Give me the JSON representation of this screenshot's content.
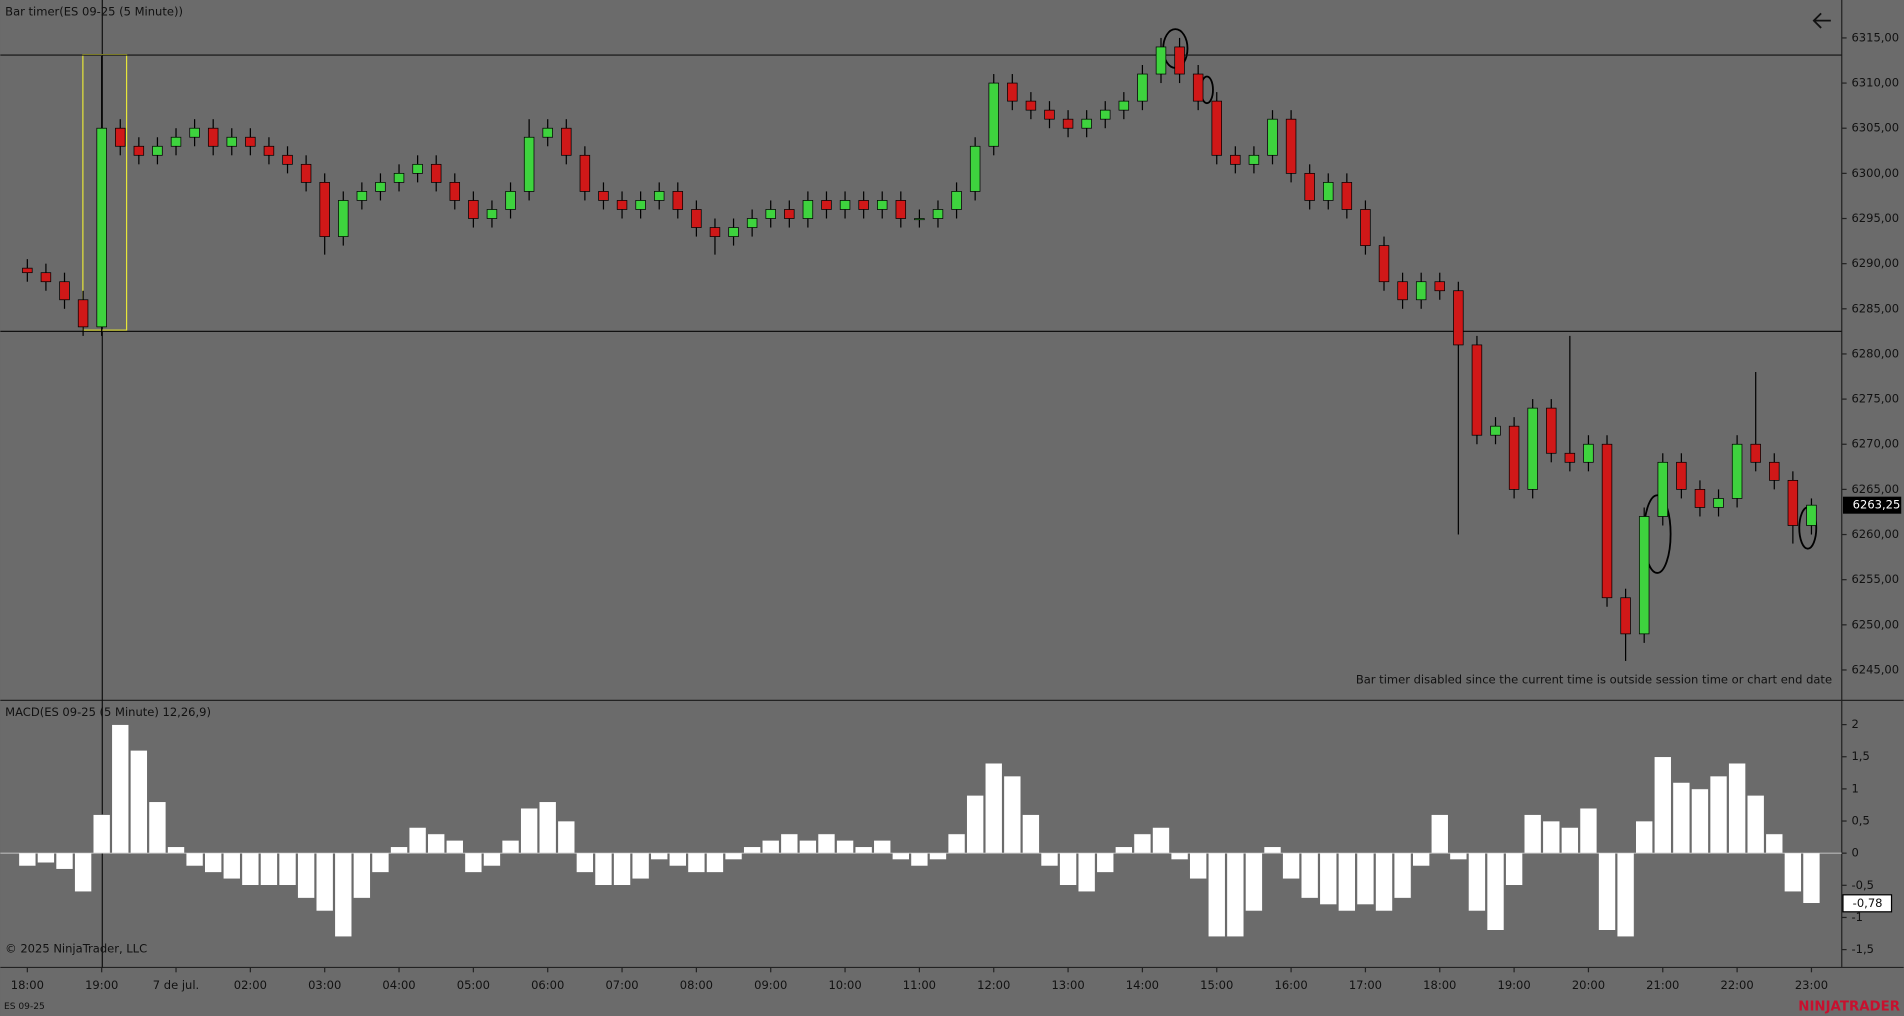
{
  "chart_data": [
    {
      "type": "candlestick",
      "title": "Bar timer(ES 09-25 (5 Minute))",
      "note": "Bar timer disabled since the current time is outside session time or chart end date",
      "up_color": "#3ed33e",
      "down_color": "#d01818",
      "xlim": [
        -0.8,
        97.5
      ],
      "xticks": [
        {
          "value": 0,
          "label": "18:00"
        },
        {
          "value": 4,
          "label": "19:00"
        },
        {
          "value": 8,
          "label": "7 de jul."
        },
        {
          "value": 12,
          "label": "02:00"
        },
        {
          "value": 16,
          "label": "03:00"
        },
        {
          "value": 20,
          "label": "04:00"
        },
        {
          "value": 24,
          "label": "05:00"
        },
        {
          "value": 28,
          "label": "06:00"
        },
        {
          "value": 32,
          "label": "07:00"
        },
        {
          "value": 36,
          "label": "08:00"
        },
        {
          "value": 40,
          "label": "09:00"
        },
        {
          "value": 44,
          "label": "10:00"
        },
        {
          "value": 48,
          "label": "11:00"
        },
        {
          "value": 52,
          "label": "12:00"
        },
        {
          "value": 56,
          "label": "13:00"
        },
        {
          "value": 60,
          "label": "14:00"
        },
        {
          "value": 64,
          "label": "15:00"
        },
        {
          "value": 68,
          "label": "16:00"
        },
        {
          "value": 72,
          "label": "17:00"
        },
        {
          "value": 76,
          "label": "18:00"
        },
        {
          "value": 80,
          "label": "19:00"
        },
        {
          "value": 84,
          "label": "20:00"
        },
        {
          "value": 88,
          "label": "21:00"
        },
        {
          "value": 92,
          "label": "22:00"
        },
        {
          "value": 96,
          "label": "23:00"
        }
      ],
      "ylim": [
        6241.9,
        6319.2
      ],
      "yticks": [
        {
          "value": 6245,
          "label": "6245,00"
        },
        {
          "value": 6250,
          "label": "6250,00"
        },
        {
          "value": 6255,
          "label": "6255,00"
        },
        {
          "value": 6260,
          "label": "6260,00"
        },
        {
          "value": 6265,
          "label": "6265,00"
        },
        {
          "value": 6270,
          "label": "6270,00"
        },
        {
          "value": 6275,
          "label": "6275,00"
        },
        {
          "value": 6280,
          "label": "6280,00"
        },
        {
          "value": 6285,
          "label": "6285,00"
        },
        {
          "value": 6290,
          "label": "6290,00"
        },
        {
          "value": 6295,
          "label": "6295,00"
        },
        {
          "value": 6300,
          "label": "6300,00"
        },
        {
          "value": 6305,
          "label": "6305,00"
        },
        {
          "value": 6310,
          "label": "6310,00"
        },
        {
          "value": 6315,
          "label": "6315,00"
        }
      ],
      "levels": [
        6313.1,
        6282.5
      ],
      "current_price": {
        "value": 6263.25,
        "label": "6263,25"
      },
      "open": [
        6289.5,
        6289,
        6288,
        6286,
        6283,
        6305,
        6303,
        6302,
        6303,
        6304,
        6305,
        6303,
        6304,
        6303,
        6302,
        6301,
        6299,
        6293,
        6297,
        6298,
        6299,
        6300,
        6301,
        6299,
        6297,
        6295,
        6296,
        6298,
        6304,
        6305,
        6302,
        6298,
        6297,
        6296,
        6297,
        6298,
        6296,
        6294,
        6293,
        6294,
        6295,
        6296,
        6295,
        6297,
        6296,
        6297,
        6296,
        6297,
        6295,
        6295,
        6296,
        6298,
        6303,
        6310,
        6308,
        6307,
        6306,
        6305,
        6306,
        6307,
        6308,
        6311,
        6314,
        6311,
        6308,
        6302,
        6301,
        6302,
        6306,
        6300,
        6297,
        6299,
        6296,
        6292,
        6288,
        6286,
        6288,
        6287,
        6281,
        6271,
        6272,
        6265,
        6274,
        6269,
        6268,
        6270,
        6253,
        6249,
        6262,
        6268,
        6265,
        6263,
        6264,
        6270,
        6268,
        6266,
        6261
      ],
      "high": [
        6290.5,
        6290,
        6289,
        6287,
        6313,
        6306,
        6304,
        6304,
        6305,
        6306,
        6306,
        6305,
        6305,
        6304,
        6303,
        6302,
        6300,
        6298,
        6299,
        6300,
        6301,
        6302,
        6302,
        6300,
        6298,
        6297,
        6299,
        6306,
        6306,
        6306,
        6303,
        6299,
        6298,
        6298,
        6299,
        6299,
        6297,
        6295,
        6295,
        6296,
        6297,
        6297,
        6298,
        6298,
        6298,
        6298,
        6298,
        6298,
        6296,
        6297,
        6299,
        6304,
        6311,
        6311,
        6309,
        6308,
        6307,
        6307,
        6308,
        6309,
        6312,
        6315,
        6315,
        6312,
        6309,
        6303,
        6303,
        6307,
        6307,
        6301,
        6300,
        6300,
        6297,
        6293,
        6289,
        6289,
        6289,
        6288,
        6282,
        6273,
        6273,
        6275,
        6275,
        6282,
        6271,
        6271,
        6254,
        6263,
        6269,
        6269,
        6266,
        6265,
        6271,
        6278,
        6269,
        6267,
        6264
      ],
      "low": [
        6288,
        6287,
        6285,
        6282,
        6282,
        6302,
        6301,
        6301,
        6302,
        6303,
        6302,
        6302,
        6302,
        6301,
        6300,
        6298,
        6291,
        6292,
        6296,
        6297,
        6298,
        6299,
        6298,
        6296,
        6294,
        6294,
        6295,
        6297,
        6303,
        6301,
        6297,
        6296,
        6295,
        6295,
        6296,
        6295,
        6293,
        6291,
        6292,
        6293,
        6294,
        6294,
        6294,
        6295,
        6295,
        6295,
        6295,
        6294,
        6294,
        6294,
        6295,
        6297,
        6302,
        6307,
        6306,
        6305,
        6304,
        6304,
        6305,
        6306,
        6307,
        6310,
        6310,
        6307,
        6301,
        6300,
        6300,
        6301,
        6299,
        6296,
        6296,
        6295,
        6291,
        6287,
        6285,
        6285,
        6286,
        6260,
        6270,
        6270,
        6264,
        6264,
        6268,
        6267,
        6267,
        6252,
        6246,
        6248,
        6261,
        6264,
        6262,
        6262,
        6263,
        6267,
        6265,
        6259,
        6260
      ],
      "close": [
        6289,
        6288,
        6286,
        6283,
        6305,
        6303,
        6302,
        6303,
        6304,
        6305,
        6303,
        6304,
        6303,
        6302,
        6301,
        6299,
        6293,
        6297,
        6298,
        6299,
        6300,
        6301,
        6299,
        6297,
        6295,
        6296,
        6298,
        6304,
        6305,
        6302,
        6298,
        6297,
        6296,
        6297,
        6298,
        6296,
        6294,
        6293,
        6294,
        6295,
        6296,
        6295,
        6297,
        6296,
        6297,
        6296,
        6297,
        6295,
        6295,
        6296,
        6298,
        6303,
        6310,
        6308,
        6307,
        6306,
        6305,
        6306,
        6307,
        6308,
        6311,
        6314,
        6311,
        6308,
        6302,
        6301,
        6302,
        6306,
        6300,
        6297,
        6299,
        6296,
        6292,
        6288,
        6286,
        6288,
        6287,
        6281,
        6271,
        6272,
        6265,
        6274,
        6269,
        6268,
        6270,
        6253,
        6249,
        6262,
        6268,
        6265,
        6263,
        6264,
        6270,
        6268,
        6266,
        6261,
        6263.25
      ]
    },
    {
      "type": "histogram",
      "title": "MACD(ES 09-25 (5 Minute) 12,26,9)",
      "color": "#ffffff",
      "ylim": [
        -1.74,
        2.32
      ],
      "yticks": [
        {
          "value": -1.5,
          "label": "-1,5"
        },
        -1,
        {
          "value": -0.5,
          "label": "-0,5"
        },
        0,
        {
          "value": 0.5,
          "label": "0,5"
        },
        1,
        {
          "value": 1.5,
          "label": "1,5"
        },
        2
      ],
      "current_value": {
        "value": -0.78,
        "label": "-0,78"
      },
      "values": [
        -0.2,
        -0.15,
        -0.25,
        -0.6,
        0.6,
        2.0,
        1.6,
        0.8,
        0.1,
        -0.2,
        -0.3,
        -0.4,
        -0.5,
        -0.5,
        -0.5,
        -0.7,
        -0.9,
        -1.3,
        -0.7,
        -0.3,
        0.1,
        0.4,
        0.3,
        0.2,
        -0.3,
        -0.2,
        0.2,
        0.7,
        0.8,
        0.5,
        -0.3,
        -0.5,
        -0.5,
        -0.4,
        -0.1,
        -0.2,
        -0.3,
        -0.3,
        -0.1,
        0.1,
        0.2,
        0.3,
        0.2,
        0.3,
        0.2,
        0.1,
        0.2,
        -0.1,
        -0.2,
        -0.1,
        0.3,
        0.9,
        1.4,
        1.2,
        0.6,
        -0.2,
        -0.5,
        -0.6,
        -0.3,
        0.1,
        0.3,
        0.4,
        -0.1,
        -0.4,
        -1.3,
        -1.3,
        -0.9,
        0.1,
        -0.4,
        -0.7,
        -0.8,
        -0.9,
        -0.8,
        -0.9,
        -0.7,
        -0.2,
        0.6,
        -0.1,
        -0.9,
        -1.2,
        -0.5,
        0.6,
        0.5,
        0.4,
        0.7,
        -1.2,
        -1.3,
        0.5,
        1.5,
        1.1,
        1.0,
        1.2,
        1.4,
        0.9,
        0.3,
        -0.6,
        -0.78
      ]
    }
  ],
  "footer": {
    "copyright": "© 2025 NinjaTrader, LLC",
    "instrument": "ES 09-25",
    "brand": "NINJATRADER"
  }
}
